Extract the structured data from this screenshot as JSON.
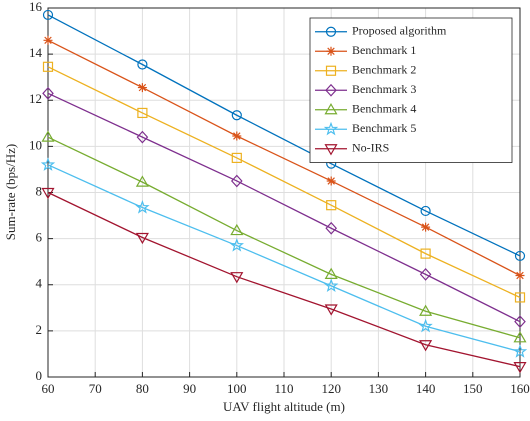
{
  "chart_data": {
    "type": "line",
    "xlabel": "UAV flight altitude (m)",
    "ylabel": "Sum-rate (bps/Hz)",
    "x": [
      60,
      80,
      100,
      120,
      140,
      160
    ],
    "xlim": [
      60,
      160
    ],
    "xticks": [
      60,
      70,
      80,
      90,
      100,
      110,
      120,
      130,
      140,
      150,
      160
    ],
    "ylim": [
      0,
      16
    ],
    "yticks": [
      0,
      2,
      4,
      6,
      8,
      10,
      12,
      14,
      16
    ],
    "grid": true,
    "legend": "northeast",
    "series": [
      {
        "name": "Proposed algorithm",
        "color": "#0072BD",
        "marker": "circle",
        "values": [
          15.7,
          13.55,
          11.35,
          9.25,
          7.2,
          5.25
        ]
      },
      {
        "name": "Benchmark 1",
        "color": "#D95319",
        "marker": "asterisk",
        "values": [
          14.6,
          12.55,
          10.45,
          8.5,
          6.5,
          4.4
        ]
      },
      {
        "name": "Benchmark 2",
        "color": "#EDB120",
        "marker": "square",
        "values": [
          13.45,
          11.45,
          9.5,
          7.45,
          5.35,
          3.45
        ]
      },
      {
        "name": "Benchmark 3",
        "color": "#7E2F8E",
        "marker": "diamond",
        "values": [
          12.3,
          10.4,
          8.5,
          6.45,
          4.45,
          2.4
        ]
      },
      {
        "name": "Benchmark 4",
        "color": "#77AC30",
        "marker": "triangle-up",
        "values": [
          10.4,
          8.45,
          6.35,
          4.45,
          2.85,
          1.7
        ]
      },
      {
        "name": "Benchmark 5",
        "color": "#4DBEEE",
        "marker": "pentagram",
        "values": [
          9.2,
          7.35,
          5.7,
          3.95,
          2.2,
          1.1
        ]
      },
      {
        "name": "No-IRS",
        "color": "#A2142F",
        "marker": "triangle-down",
        "values": [
          8.0,
          6.05,
          4.35,
          2.95,
          1.4,
          0.45
        ]
      }
    ]
  }
}
